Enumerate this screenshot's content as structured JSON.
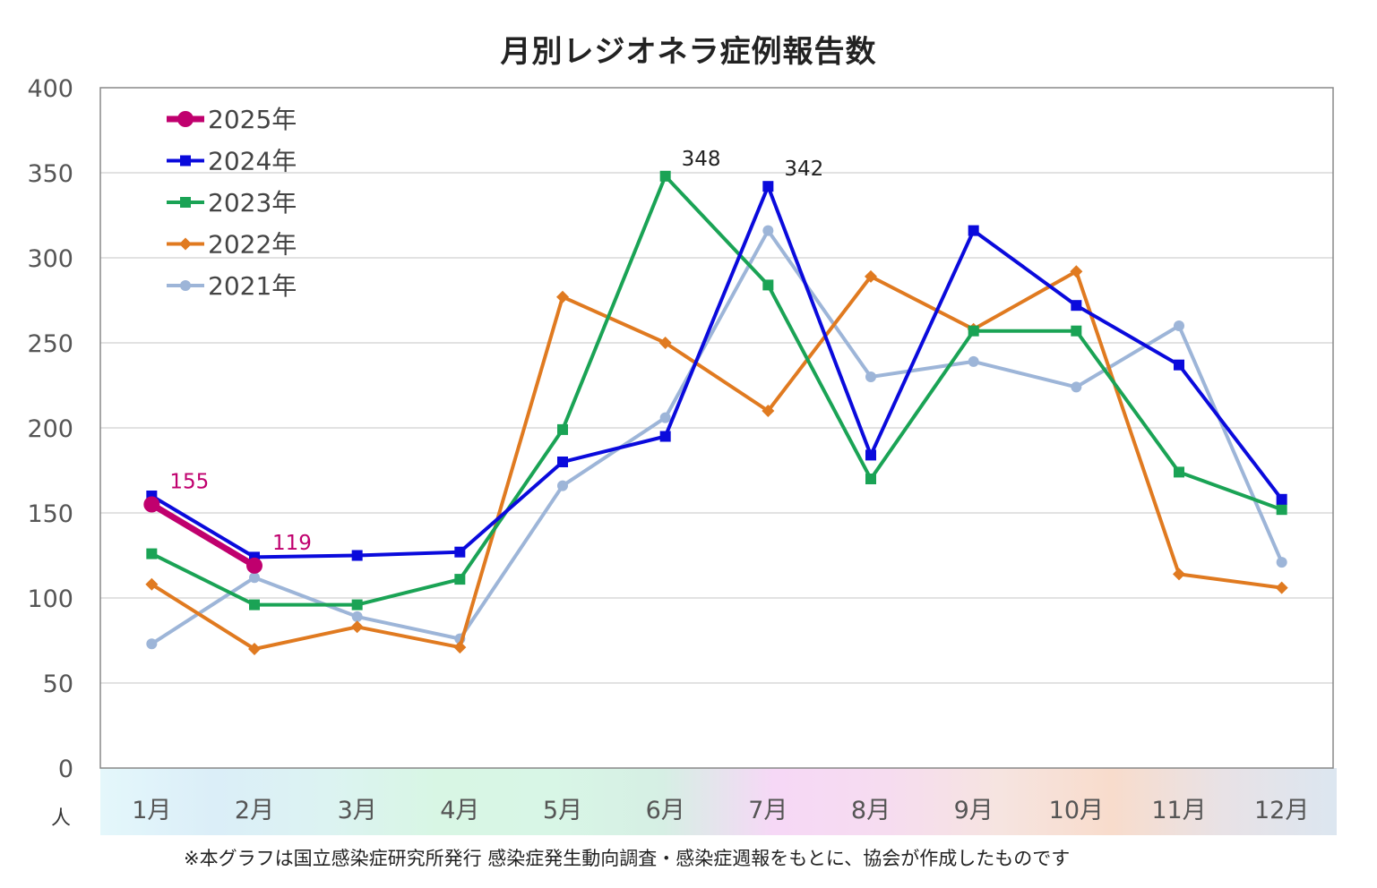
{
  "chart_data": {
    "type": "line",
    "title": "月別レジオネラ症例報告数",
    "unit_label": "人",
    "footnote": "※本グラフは国立感染症研究所発行 感染症発生動向調査・感染症週報をもとに、協会が作成したものです",
    "categories": [
      "1月",
      "2月",
      "3月",
      "4月",
      "5月",
      "6月",
      "7月",
      "8月",
      "9月",
      "10月",
      "11月",
      "12月"
    ],
    "ylim": [
      0,
      400
    ],
    "yticks": [
      0,
      50,
      100,
      150,
      200,
      250,
      300,
      350,
      400
    ],
    "grid": true,
    "legend_position": "top-left",
    "series": [
      {
        "name": "2025年",
        "color": "#c0006e",
        "marker": "circle-large",
        "width": 7,
        "values": [
          155,
          119,
          null,
          null,
          null,
          null,
          null,
          null,
          null,
          null,
          null,
          null
        ]
      },
      {
        "name": "2024年",
        "color": "#0a0adc",
        "marker": "square",
        "width": 4,
        "values": [
          160,
          124,
          125,
          127,
          180,
          195,
          342,
          184,
          316,
          272,
          237,
          158
        ]
      },
      {
        "name": "2023年",
        "color": "#1aa355",
        "marker": "square",
        "width": 4,
        "values": [
          126,
          96,
          96,
          111,
          199,
          348,
          284,
          170,
          257,
          257,
          174,
          152
        ]
      },
      {
        "name": "2022年",
        "color": "#e07a20",
        "marker": "diamond",
        "width": 4,
        "values": [
          108,
          70,
          83,
          71,
          277,
          250,
          210,
          289,
          258,
          292,
          114,
          106
        ]
      },
      {
        "name": "2021年",
        "color": "#9db5d8",
        "marker": "circle",
        "width": 4,
        "values": [
          73,
          112,
          89,
          76,
          166,
          206,
          316,
          230,
          239,
          224,
          260,
          121
        ]
      }
    ],
    "annotations": [
      {
        "text": "155",
        "series": "2025年",
        "category": "1月",
        "value": 155,
        "color": "#c0006e"
      },
      {
        "text": "119",
        "series": "2025年",
        "category": "2月",
        "value": 119,
        "color": "#c0006e"
      },
      {
        "text": "348",
        "series": "2023年",
        "category": "6月",
        "value": 348,
        "color": "#222222"
      },
      {
        "text": "342",
        "series": "2024年",
        "category": "7月",
        "value": 342,
        "color": "#222222"
      }
    ],
    "axis_band_colors": [
      "#e4f7fb",
      "#dbeef8",
      "#dcf3f2",
      "#d8f6e4",
      "#d8f6e6",
      "#d6efe4",
      "#f6d8f6",
      "#f6dcf0",
      "#f6e4e0",
      "#f8dccc",
      "#e8e2e6",
      "#dce6f0"
    ]
  }
}
